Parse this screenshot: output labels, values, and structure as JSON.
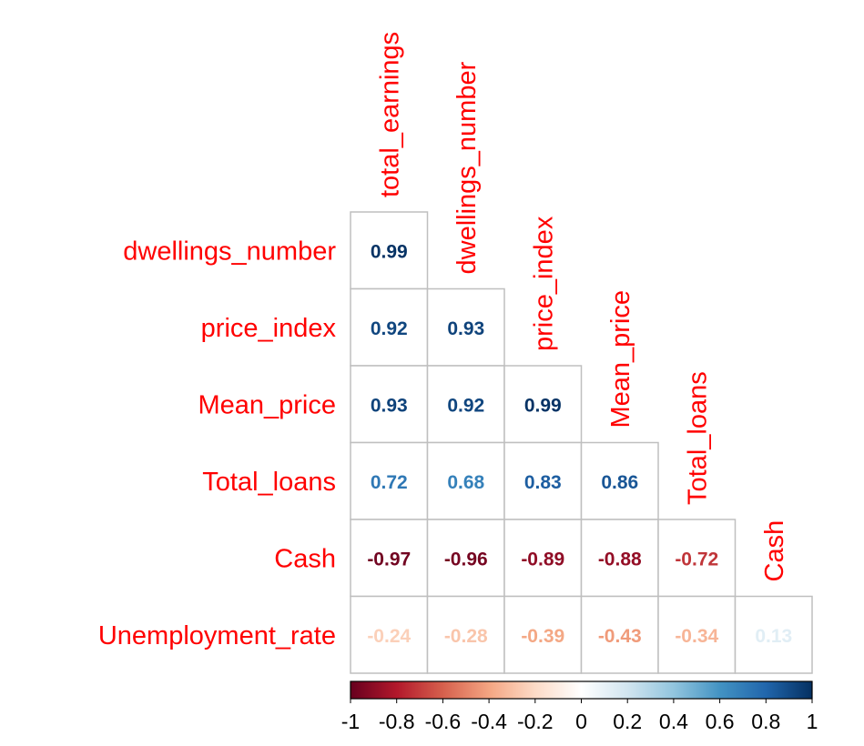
{
  "chart_data": {
    "type": "heatmap",
    "subtype": "correlation-matrix-lower-triangle",
    "variables": [
      "total_earnings",
      "dwellings_number",
      "price_index",
      "Mean_price",
      "Total_loans",
      "Cash",
      "Unemployment_rate"
    ],
    "row_labels": [
      "dwellings_number",
      "price_index",
      "Mean_price",
      "Total_loans",
      "Cash",
      "Unemployment_rate"
    ],
    "column_labels": [
      "total_earnings",
      "dwellings_number",
      "price_index",
      "Mean_price",
      "Total_loans",
      "Cash"
    ],
    "values": [
      [
        0.99
      ],
      [
        0.92,
        0.93
      ],
      [
        0.93,
        0.92,
        0.99
      ],
      [
        0.72,
        0.68,
        0.83,
        0.86
      ],
      [
        -0.97,
        -0.96,
        -0.89,
        -0.88,
        -0.72
      ],
      [
        -0.24,
        -0.28,
        -0.39,
        -0.43,
        -0.34,
        0.13
      ]
    ],
    "value_labels": [
      [
        "0.99"
      ],
      [
        "0.92",
        "0.93"
      ],
      [
        "0.93",
        "0.92",
        "0.99"
      ],
      [
        "0.72",
        "0.68",
        "0.83",
        "0.86"
      ],
      [
        "-0.97",
        "-0.96",
        "-0.89",
        "-0.88",
        "-0.72"
      ],
      [
        "-0.24",
        "-0.28",
        "-0.39",
        "-0.43",
        "-0.34",
        "0.13"
      ]
    ],
    "colorbar": {
      "range": [
        -1,
        1
      ],
      "ticks": [
        -1,
        -0.8,
        -0.6,
        -0.4,
        -0.2,
        0,
        0.2,
        0.4,
        0.6,
        0.8,
        1
      ],
      "tick_labels": [
        "-1",
        "-0.8",
        "-0.6",
        "-0.4",
        "-0.2",
        "0",
        "0.2",
        "0.4",
        "0.6",
        "0.8",
        "1"
      ],
      "orientation": "horizontal",
      "placement": "bottom"
    },
    "palette": [
      "#67001f",
      "#b2182b",
      "#d6604d",
      "#f4a582",
      "#fddbc7",
      "#ffffff",
      "#d1e5f0",
      "#92c5de",
      "#4393c3",
      "#2166ac",
      "#053061"
    ],
    "label_color": "#ff0000"
  }
}
